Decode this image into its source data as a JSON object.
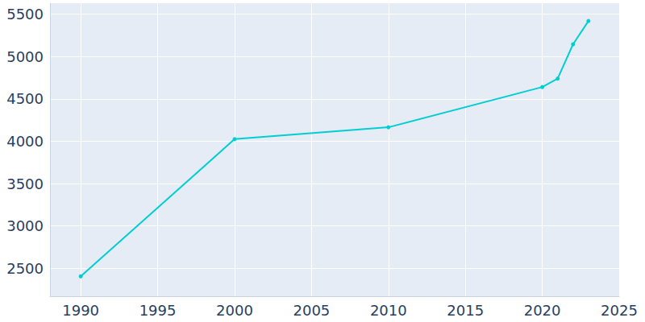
{
  "chart_data": {
    "type": "line",
    "x": [
      1990,
      2000,
      2010,
      2020,
      2021,
      2022,
      2023
    ],
    "values": [
      2405,
      4025,
      4165,
      4640,
      4740,
      5145,
      5420
    ],
    "color": "#00ced1",
    "marker": "circle",
    "xlim": [
      1988,
      2025
    ],
    "xticks": [
      1990,
      1995,
      2000,
      2005,
      2010,
      2015,
      2020,
      2025
    ],
    "ylim": [
      2170,
      5630
    ],
    "yticks": [
      2500,
      3000,
      3500,
      4000,
      4500,
      5000,
      5500
    ],
    "grid": true
  }
}
